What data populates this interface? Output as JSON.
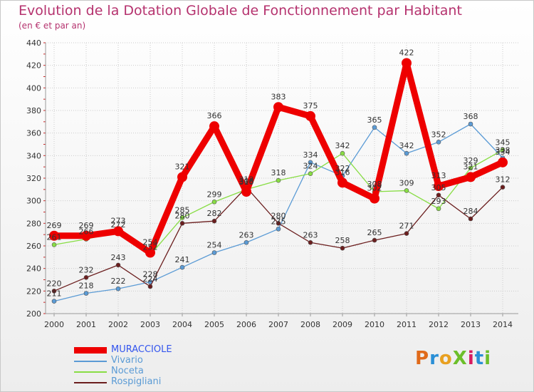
{
  "title": "Evolution de la Dotation Globale de Fonctionnement par Habitant",
  "subtitle": "(en € et par an)",
  "brand": "ProXiti",
  "chart_data": {
    "type": "line",
    "x": [
      "2000",
      "2001",
      "2002",
      "2003",
      "2004",
      "2005",
      "2006",
      "2007",
      "2008",
      "2009",
      "2010",
      "2011",
      "2012",
      "2013",
      "2014"
    ],
    "ylim": [
      200,
      440
    ],
    "yticks": [
      200,
      220,
      240,
      260,
      280,
      300,
      320,
      340,
      360,
      380,
      400,
      420,
      440
    ],
    "series": [
      {
        "name": "MURACCIOLE",
        "color": "#ee0000",
        "values": [
          269,
          269,
          273,
          254,
          321,
          366,
          308,
          383,
          375,
          316,
          302,
          422,
          313,
          321,
          334
        ]
      },
      {
        "name": "Vivario",
        "color": "#5b9bd5",
        "values": [
          211,
          218,
          222,
          228,
          241,
          254,
          263,
          275,
          334,
          322,
          365,
          342,
          352,
          368,
          338
        ]
      },
      {
        "name": "Noceta",
        "color": "#88dd44",
        "values": [
          261,
          266,
          272,
          252,
          285,
          299,
          310,
          318,
          324,
          342,
          308,
          309,
          293,
          329,
          345
        ]
      },
      {
        "name": "Rospigliani",
        "color": "#6b1e1e",
        "values": [
          220,
          232,
          243,
          224,
          280,
          282,
          312,
          280,
          263,
          258,
          265,
          271,
          305,
          284,
          312
        ]
      }
    ]
  },
  "labels": {
    "MURACCIOLE": [
      "269",
      "269",
      "273",
      "254",
      "321",
      "366",
      "308",
      "383",
      "375",
      "316",
      "302",
      "422",
      "313",
      "321",
      "334"
    ],
    "Vivario": [
      "211",
      "218",
      "222",
      "228",
      "241",
      "254",
      "263",
      "275",
      "334",
      "322",
      "365",
      "342",
      "352",
      "368",
      "338"
    ],
    "Noceta": [
      "261",
      "266",
      "272",
      "252",
      "285",
      "299",
      "310",
      "318",
      "324",
      "342",
      "308",
      "309",
      "293",
      "329",
      "345"
    ],
    "Rospigliani": [
      "220",
      "232",
      "243",
      "224",
      "280",
      "282",
      "312",
      "280",
      "263",
      "258",
      "265",
      "271",
      "305",
      "284",
      "312"
    ]
  }
}
